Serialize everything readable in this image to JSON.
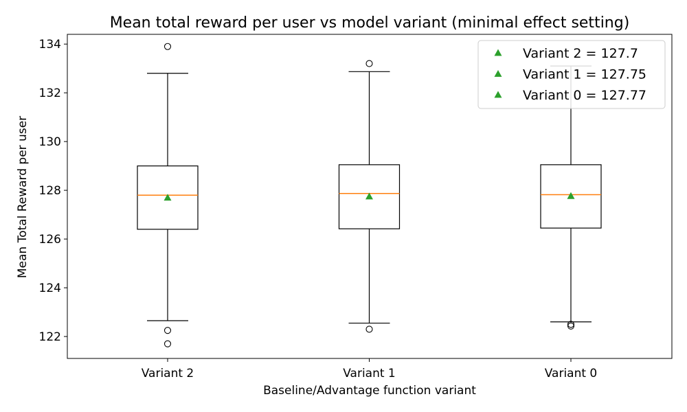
{
  "chart_data": {
    "type": "box",
    "title": "Mean total reward per user vs model variant (minimal effect setting)",
    "xlabel": "Baseline/Advantage function variant",
    "ylabel": "Mean Total Reward per user",
    "ylim": [
      121.1,
      134.4
    ],
    "yticks": [
      122,
      124,
      126,
      128,
      130,
      132,
      134
    ],
    "categories": [
      "Variant 2",
      "Variant 1",
      "Variant 0"
    ],
    "boxes": [
      {
        "category": "Variant 2",
        "whisker_low": 122.65,
        "q1": 126.4,
        "median": 127.8,
        "q3": 129.0,
        "whisker_high": 132.8,
        "mean": 127.7,
        "outliers": [
          133.9,
          122.25,
          121.7
        ]
      },
      {
        "category": "Variant 1",
        "whisker_low": 122.55,
        "q1": 126.42,
        "median": 127.87,
        "q3": 129.05,
        "whisker_high": 132.87,
        "mean": 127.75,
        "outliers": [
          133.2,
          122.3
        ]
      },
      {
        "category": "Variant 0",
        "whisker_low": 122.6,
        "q1": 126.45,
        "median": 127.82,
        "q3": 129.05,
        "whisker_high": 133.1,
        "mean": 127.77,
        "outliers": [
          122.5,
          122.43
        ]
      }
    ],
    "legend": {
      "placement": "top-right",
      "entries": [
        "Variant 2 = 127.7",
        "Variant 1 = 127.75",
        "Variant 0 = 127.77"
      ]
    },
    "grid": false,
    "colors": {
      "box": "#000000",
      "median": "#ff7f0e",
      "mean": "#2ca02c"
    }
  }
}
